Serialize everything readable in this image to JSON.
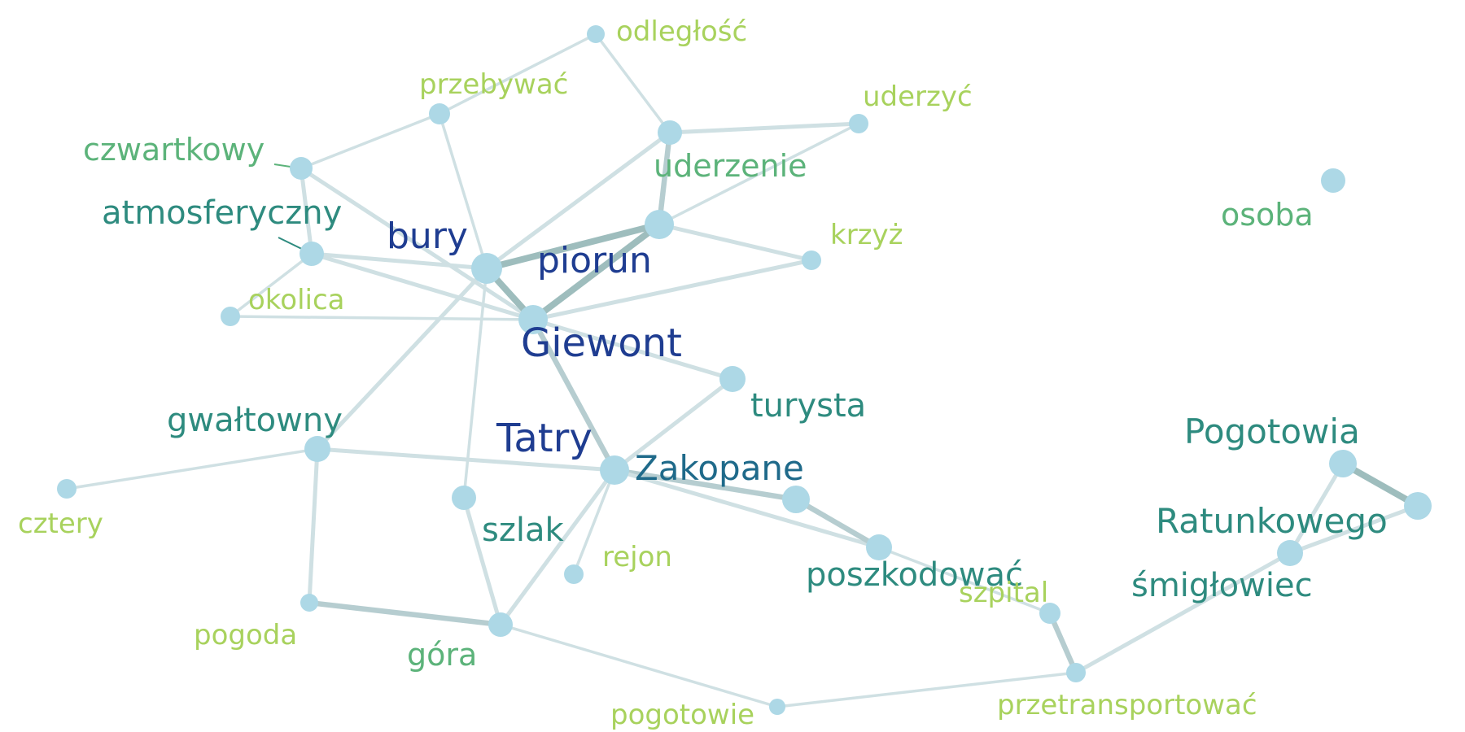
{
  "colors": {
    "background": "#ffffff",
    "node": "#add8e6",
    "edge_light": "#cfe0e3",
    "edge_mid": "#b6cdd0",
    "edge_dark": "#9ebdbd",
    "label_dark_blue": "#1f3d91",
    "label_teal_blue": "#1f6a8a",
    "label_teal": "#2e8b7f",
    "label_green": "#5cb37a",
    "label_lime": "#a8d25d"
  },
  "nodes": [
    {
      "id": "giewont",
      "label": "Giewont",
      "color": "label_dark_blue"
    },
    {
      "id": "piorun",
      "label": "piorun",
      "color": "label_dark_blue"
    },
    {
      "id": "bury",
      "label": "bury",
      "color": "label_dark_blue"
    },
    {
      "id": "tatry",
      "label": "Tatry",
      "color": "label_dark_blue"
    },
    {
      "id": "zakopane",
      "label": "Zakopane",
      "color": "label_teal_blue"
    },
    {
      "id": "turysta",
      "label": "turysta",
      "color": "label_teal"
    },
    {
      "id": "poszkodowac",
      "label": "poszkodować",
      "color": "label_teal"
    },
    {
      "id": "pogotowia",
      "label": "Pogotowia",
      "color": "label_teal"
    },
    {
      "id": "ratunkowego",
      "label": "Ratunkowego",
      "color": "label_teal"
    },
    {
      "id": "smiglowiec",
      "label": "śmigłowiec",
      "color": "label_teal"
    },
    {
      "id": "atmosferyczny",
      "label": "atmosferyczny",
      "color": "label_teal"
    },
    {
      "id": "gwaltowny",
      "label": "gwałtowny",
      "color": "label_teal"
    },
    {
      "id": "szlak",
      "label": "szlak",
      "color": "label_teal"
    },
    {
      "id": "uderzenie",
      "label": "uderzenie",
      "color": "label_green"
    },
    {
      "id": "osoba",
      "label": "osoba",
      "color": "label_green"
    },
    {
      "id": "czwartkowy",
      "label": "czwartkowy",
      "color": "label_green"
    },
    {
      "id": "gora",
      "label": "góra",
      "color": "label_green"
    },
    {
      "id": "odleglosc",
      "label": "odległość",
      "color": "label_lime"
    },
    {
      "id": "przebywac",
      "label": "przebywać",
      "color": "label_lime"
    },
    {
      "id": "uderzyc",
      "label": "uderzyć",
      "color": "label_lime"
    },
    {
      "id": "krzyz",
      "label": "krzyż",
      "color": "label_lime"
    },
    {
      "id": "okolica",
      "label": "okolica",
      "color": "label_lime"
    },
    {
      "id": "cztery",
      "label": "cztery",
      "color": "label_lime"
    },
    {
      "id": "rejon",
      "label": "rejon",
      "color": "label_lime"
    },
    {
      "id": "pogoda",
      "label": "pogoda",
      "color": "label_lime"
    },
    {
      "id": "pogotowie",
      "label": "pogotowie",
      "color": "label_lime"
    },
    {
      "id": "szpital",
      "label": "szpital",
      "color": "label_lime"
    },
    {
      "id": "przetransportowac",
      "label": "przetransportować",
      "color": "label_lime"
    }
  ],
  "edges": [
    {
      "source": "odleglosc",
      "target": "przebywac",
      "weight": 1
    },
    {
      "source": "odleglosc",
      "target": "uderzenie",
      "weight": 1
    },
    {
      "source": "przebywac",
      "target": "czwartkowy",
      "weight": 1
    },
    {
      "source": "przebywac",
      "target": "bury",
      "weight": 1
    },
    {
      "source": "uderzenie",
      "target": "uderzyc",
      "weight": 2
    },
    {
      "source": "uderzenie",
      "target": "bury",
      "weight": 2
    },
    {
      "source": "uderzenie",
      "target": "piorun",
      "weight": 3
    },
    {
      "source": "uderzyc",
      "target": "piorun",
      "weight": 1
    },
    {
      "source": "czwartkowy",
      "target": "atmosferyczny",
      "weight": 2
    },
    {
      "source": "czwartkowy",
      "target": "giewont",
      "weight": 2
    },
    {
      "source": "atmosferyczny",
      "target": "bury",
      "weight": 2
    },
    {
      "source": "atmosferyczny",
      "target": "okolica",
      "weight": 1
    },
    {
      "source": "atmosferyczny",
      "target": "giewont",
      "weight": 2
    },
    {
      "source": "okolica",
      "target": "giewont",
      "weight": 1
    },
    {
      "source": "bury",
      "target": "piorun",
      "weight": 4
    },
    {
      "source": "bury",
      "target": "giewont",
      "weight": 4
    },
    {
      "source": "bury",
      "target": "gwaltowny",
      "weight": 2
    },
    {
      "source": "bury",
      "target": "szlak",
      "weight": 1
    },
    {
      "source": "piorun",
      "target": "giewont",
      "weight": 4
    },
    {
      "source": "piorun",
      "target": "krzyz",
      "weight": 2
    },
    {
      "source": "giewont",
      "target": "krzyz",
      "weight": 2
    },
    {
      "source": "giewont",
      "target": "turysta",
      "weight": 2
    },
    {
      "source": "giewont",
      "target": "zakopane",
      "weight": 3
    },
    {
      "source": "turysta",
      "target": "zakopane",
      "weight": 2
    },
    {
      "source": "gwaltowny",
      "target": "cztery",
      "weight": 1
    },
    {
      "source": "gwaltowny",
      "target": "zakopane",
      "weight": 2
    },
    {
      "source": "gwaltowny",
      "target": "pogoda",
      "weight": 2
    },
    {
      "source": "zakopane",
      "target": "tatry_node",
      "weight": 3
    },
    {
      "source": "zakopane",
      "target": "poszkodowac",
      "weight": 2
    },
    {
      "source": "zakopane",
      "target": "rejon",
      "weight": 1
    },
    {
      "source": "zakopane",
      "target": "gora",
      "weight": 2
    },
    {
      "source": "tatry_node",
      "target": "poszkodowac",
      "weight": 3
    },
    {
      "source": "poszkodowac",
      "target": "szpital",
      "weight": 1
    },
    {
      "source": "szlak",
      "target": "gora",
      "weight": 2
    },
    {
      "source": "gora",
      "target": "pogoda",
      "weight": 3
    },
    {
      "source": "gora",
      "target": "pogotowie",
      "weight": 1
    },
    {
      "source": "pogotowie",
      "target": "przetransportowac",
      "weight": 1
    },
    {
      "source": "szpital",
      "target": "przetransportowac",
      "weight": 3
    },
    {
      "source": "przetransportowac",
      "target": "smiglowiec",
      "weight": 2
    },
    {
      "source": "smiglowiec",
      "target": "pogotowia",
      "weight": 2
    },
    {
      "source": "smiglowiec",
      "target": "ratunkowego",
      "weight": 2
    },
    {
      "source": "pogotowia",
      "target": "ratunkowego",
      "weight": 4
    }
  ]
}
